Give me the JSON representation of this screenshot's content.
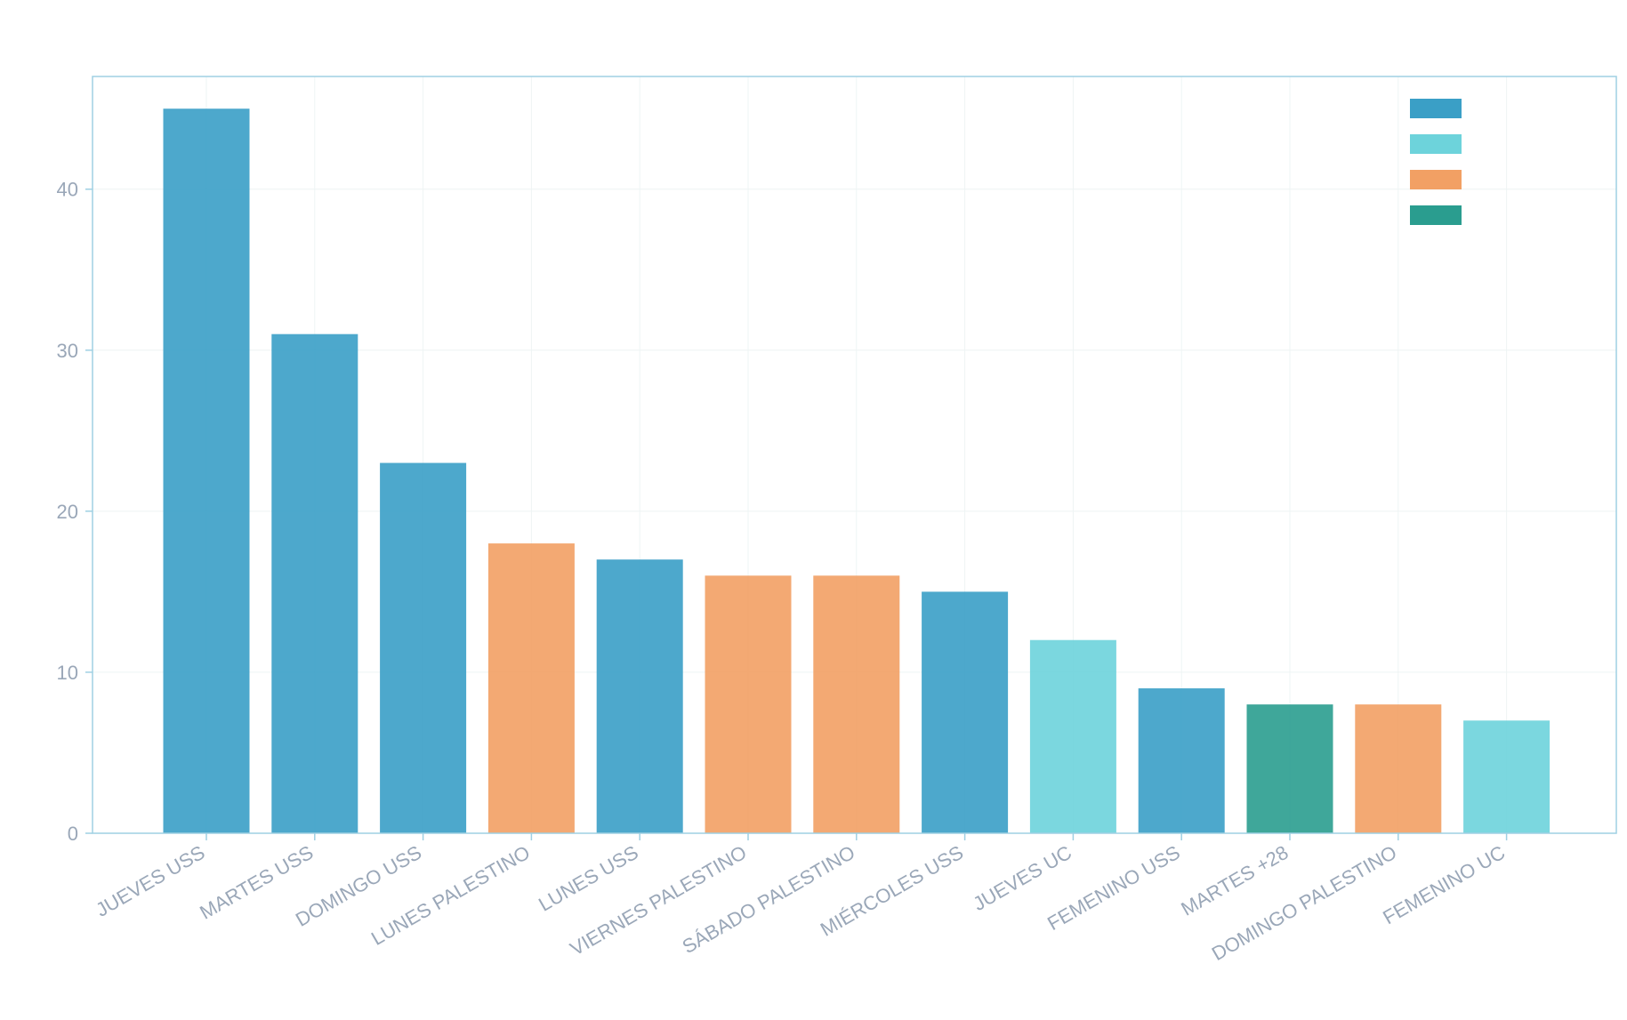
{
  "chart_data": {
    "type": "bar",
    "title": "",
    "xlabel": "",
    "ylabel": "",
    "ylim": [
      0,
      47
    ],
    "yticks": [
      0,
      10,
      20,
      30,
      40
    ],
    "grid": true,
    "legend_position": "top-right",
    "categories": [
      "JUEVES USS",
      "MARTES USS",
      "DOMINGO USS",
      "LUNES PALESTINO",
      "LUNES USS",
      "VIERNES PALESTINO",
      "SÁBADO PALESTINO",
      "MIÉRCOLES USS",
      "JUEVES UC",
      "FEMENINO USS",
      "MARTES +28",
      "DOMINGO PALESTINO",
      "FEMENINO UC"
    ],
    "values": [
      45,
      31,
      23,
      18,
      17,
      16,
      16,
      15,
      12,
      9,
      8,
      8,
      7
    ],
    "groups": [
      0,
      0,
      0,
      2,
      0,
      2,
      2,
      0,
      1,
      0,
      3,
      2,
      1
    ],
    "legend": [
      {
        "color": "#3a9fc6"
      },
      {
        "color": "#6dd3db"
      },
      {
        "color": "#f2a064"
      },
      {
        "color": "#2a9d8f"
      }
    ],
    "colors": {
      "axis": "#9fd0e3",
      "grid": "#eef4f4",
      "tick_text": "#9aa7b8"
    }
  }
}
